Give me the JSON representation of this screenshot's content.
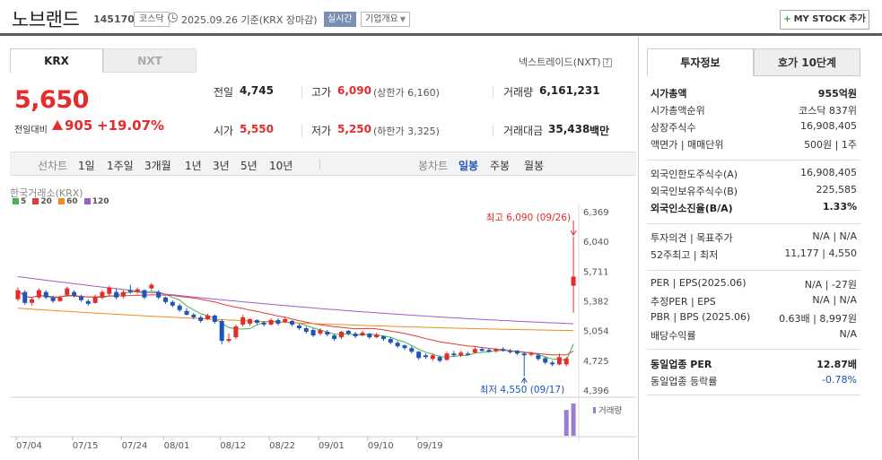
{
  "header": {
    "stock_name": "노브랜드",
    "stock_code": "145170",
    "market": "코스닥",
    "date_text": "2025.09.26 기준(KRX 장마감)",
    "realtime_label": "실시간",
    "company_overview_label": "기업개요",
    "mystock_label": "MY STOCK 추가"
  },
  "market_tabs": [
    "KRX",
    "NXT"
  ],
  "nxt_link": "넥스트레이드(NXT)",
  "quote": {
    "price": "5,650",
    "prev_label": "전일대비",
    "change": "905",
    "change_rate": "+19.07%",
    "prev_close_label": "전일",
    "prev_close": "4,745",
    "high_label": "고가",
    "high": "6,090",
    "upper_limit": "(상한가 6,160)",
    "volume_label": "거래량",
    "volume": "6,161,231",
    "open_label": "시가",
    "open": "5,550",
    "low_label": "저가",
    "low": "5,250",
    "lower_limit": "(하한가 3,325)",
    "amount_label": "거래대금",
    "amount": "35,438",
    "amount_unit": "백만"
  },
  "period_bar": {
    "line_chart": "선차트",
    "periods": [
      "1일",
      "1주일",
      "3개월",
      "1년",
      "3년",
      "5년",
      "10년"
    ],
    "candle_chart": "봉차트",
    "candle_periods": [
      "일봉",
      "주봉",
      "월봉"
    ],
    "active_candle": "일봉"
  },
  "chart_source": "한국거래소(KRX)",
  "legend": [
    "5",
    "20",
    "60",
    "120"
  ],
  "colors": {
    "up": "#e52b2b",
    "down": "#1d56b8",
    "ma5": "#4caf50",
    "ma20": "#e53935",
    "ma60": "#f08c1e",
    "ma120": "#9c5fc9",
    "accent_blue": "#1d56b8"
  },
  "chart_data": {
    "type": "candlestick",
    "y_axis_ticks": [
      "6,369",
      "6,040",
      "5,711",
      "5,382",
      "5,054",
      "4,725",
      "4,396"
    ],
    "ylim": [
      4396,
      6369
    ],
    "x_axis_ticks": [
      "07/04",
      "07/15",
      "07/24",
      "08/01",
      "08/12",
      "08/22",
      "09/01",
      "09/10",
      "09/19"
    ],
    "annotation_high": "최고 6,090 (09/26)",
    "annotation_low": "최저 4,550 (09/17)",
    "volume_label": "거래량",
    "candles": [
      {
        "o": 5400,
        "c": 5500,
        "h": 5530,
        "l": 5380
      },
      {
        "o": 5480,
        "c": 5360,
        "h": 5500,
        "l": 5340
      },
      {
        "o": 5360,
        "c": 5400,
        "h": 5420,
        "l": 5330
      },
      {
        "o": 5420,
        "c": 5500,
        "h": 5520,
        "l": 5400
      },
      {
        "o": 5480,
        "c": 5420,
        "h": 5500,
        "l": 5400
      },
      {
        "o": 5420,
        "c": 5380,
        "h": 5440,
        "l": 5360
      },
      {
        "o": 5380,
        "c": 5420,
        "h": 5440,
        "l": 5370
      },
      {
        "o": 5450,
        "c": 5520,
        "h": 5540,
        "l": 5430
      },
      {
        "o": 5480,
        "c": 5440,
        "h": 5500,
        "l": 5420
      },
      {
        "o": 5430,
        "c": 5390,
        "h": 5450,
        "l": 5370
      },
      {
        "o": 5380,
        "c": 5350,
        "h": 5400,
        "l": 5330
      },
      {
        "o": 5360,
        "c": 5430,
        "h": 5450,
        "l": 5350
      },
      {
        "o": 5420,
        "c": 5480,
        "h": 5500,
        "l": 5400
      },
      {
        "o": 5460,
        "c": 5530,
        "h": 5550,
        "l": 5440
      },
      {
        "o": 5480,
        "c": 5420,
        "h": 5520,
        "l": 5400
      },
      {
        "o": 5430,
        "c": 5480,
        "h": 5500,
        "l": 5410
      },
      {
        "o": 5500,
        "c": 5480,
        "h": 5560,
        "l": 5460
      },
      {
        "o": 5480,
        "c": 5510,
        "h": 5530,
        "l": 5460
      },
      {
        "o": 5500,
        "c": 5420,
        "h": 5510,
        "l": 5400
      },
      {
        "o": 5520,
        "c": 5560,
        "h": 5580,
        "l": 5500
      },
      {
        "o": 5480,
        "c": 5420,
        "h": 5500,
        "l": 5400
      },
      {
        "o": 5420,
        "c": 5370,
        "h": 5430,
        "l": 5350
      },
      {
        "o": 5370,
        "c": 5330,
        "h": 5390,
        "l": 5310
      },
      {
        "o": 5330,
        "c": 5280,
        "h": 5350,
        "l": 5260
      },
      {
        "o": 5270,
        "c": 5230,
        "h": 5300,
        "l": 5220
      },
      {
        "o": 5230,
        "c": 5200,
        "h": 5250,
        "l": 5180
      },
      {
        "o": 5200,
        "c": 5160,
        "h": 5220,
        "l": 5140
      },
      {
        "o": 5180,
        "c": 5220,
        "h": 5240,
        "l": 5170
      },
      {
        "o": 5220,
        "c": 5150,
        "h": 5230,
        "l": 5130
      },
      {
        "o": 5160,
        "c": 4940,
        "h": 5180,
        "l": 4900
      },
      {
        "o": 4940,
        "c": 4960,
        "h": 5020,
        "l": 4920
      },
      {
        "o": 4980,
        "c": 5100,
        "h": 5120,
        "l": 4960
      },
      {
        "o": 5120,
        "c": 5200,
        "h": 5230,
        "l": 5100
      },
      {
        "o": 5130,
        "c": 5180,
        "h": 5190,
        "l": 5110
      },
      {
        "o": 5170,
        "c": 5140,
        "h": 5180,
        "l": 5120
      },
      {
        "o": 5140,
        "c": 5120,
        "h": 5160,
        "l": 5100
      },
      {
        "o": 5120,
        "c": 5170,
        "h": 5190,
        "l": 5110
      },
      {
        "o": 5170,
        "c": 5130,
        "h": 5190,
        "l": 5110
      },
      {
        "o": 5150,
        "c": 5180,
        "h": 5200,
        "l": 5140
      },
      {
        "o": 5160,
        "c": 5120,
        "h": 5170,
        "l": 5100
      },
      {
        "o": 5110,
        "c": 5080,
        "h": 5130,
        "l": 5060
      },
      {
        "o": 5080,
        "c": 5040,
        "h": 5100,
        "l": 5020
      },
      {
        "o": 5060,
        "c": 5000,
        "h": 5080,
        "l": 4980
      },
      {
        "o": 5020,
        "c": 5060,
        "h": 5080,
        "l": 5000
      },
      {
        "o": 5040,
        "c": 5010,
        "h": 5060,
        "l": 4990
      },
      {
        "o": 5000,
        "c": 4960,
        "h": 5020,
        "l": 4940
      },
      {
        "o": 4980,
        "c": 5040,
        "h": 5050,
        "l": 4960
      },
      {
        "o": 5050,
        "c": 5020,
        "h": 5060,
        "l": 5000
      },
      {
        "o": 5020,
        "c": 4990,
        "h": 5040,
        "l": 4970
      },
      {
        "o": 5000,
        "c": 5030,
        "h": 5050,
        "l": 4990
      },
      {
        "o": 5020,
        "c": 4980,
        "h": 5030,
        "l": 4960
      },
      {
        "o": 4980,
        "c": 5010,
        "h": 5030,
        "l": 4970
      },
      {
        "o": 4990,
        "c": 4960,
        "h": 5000,
        "l": 4940
      },
      {
        "o": 4960,
        "c": 4920,
        "h": 4980,
        "l": 4900
      },
      {
        "o": 4920,
        "c": 4880,
        "h": 4940,
        "l": 4860
      },
      {
        "o": 4890,
        "c": 4860,
        "h": 4900,
        "l": 4840
      },
      {
        "o": 4860,
        "c": 4820,
        "h": 4880,
        "l": 4800
      },
      {
        "o": 4820,
        "c": 4750,
        "h": 4830,
        "l": 4730
      },
      {
        "o": 4780,
        "c": 4760,
        "h": 4800,
        "l": 4740
      },
      {
        "o": 4740,
        "c": 4780,
        "h": 4800,
        "l": 4720
      },
      {
        "o": 4760,
        "c": 4720,
        "h": 4780,
        "l": 4700
      },
      {
        "o": 4730,
        "c": 4800,
        "h": 4820,
        "l": 4720
      },
      {
        "o": 4800,
        "c": 4780,
        "h": 4830,
        "l": 4770
      },
      {
        "o": 4780,
        "c": 4810,
        "h": 4830,
        "l": 4760
      },
      {
        "o": 4800,
        "c": 4790,
        "h": 4820,
        "l": 4780
      },
      {
        "o": 4810,
        "c": 4850,
        "h": 4870,
        "l": 4800
      },
      {
        "o": 4850,
        "c": 4830,
        "h": 4870,
        "l": 4820
      },
      {
        "o": 4840,
        "c": 4820,
        "h": 4860,
        "l": 4810
      },
      {
        "o": 4830,
        "c": 4850,
        "h": 4860,
        "l": 4810
      },
      {
        "o": 4850,
        "c": 4830,
        "h": 4870,
        "l": 4820
      },
      {
        "o": 4830,
        "c": 4820,
        "h": 4850,
        "l": 4800
      },
      {
        "o": 4830,
        "c": 4800,
        "h": 4840,
        "l": 4780
      },
      {
        "o": 4800,
        "c": 4780,
        "h": 4820,
        "l": 4550
      },
      {
        "o": 4790,
        "c": 4800,
        "h": 4820,
        "l": 4770
      },
      {
        "o": 4780,
        "c": 4740,
        "h": 4800,
        "l": 4720
      },
      {
        "o": 4750,
        "c": 4700,
        "h": 4760,
        "l": 4680
      },
      {
        "o": 4700,
        "c": 4680,
        "h": 4720,
        "l": 4660
      },
      {
        "o": 4680,
        "c": 4760,
        "h": 4800,
        "l": 4670
      },
      {
        "o": 4680,
        "c": 4745,
        "h": 4760,
        "l": 4660
      },
      {
        "o": 5550,
        "c": 5650,
        "h": 6090,
        "l": 5250
      }
    ],
    "volume": [
      {
        "index": 78,
        "value": 0.8
      },
      {
        "index": 79,
        "value": 1.0
      }
    ]
  },
  "invest_panel": {
    "tabs": [
      "투자정보",
      "호가 10단계"
    ],
    "rows1": [
      {
        "label": "시가총액",
        "value": "955억원",
        "bold": true
      },
      {
        "label": "시가총액순위",
        "value": "코스닥 837위"
      },
      {
        "label": "상장주식수",
        "value": "16,908,405"
      },
      {
        "label": "액면가 | 매매단위",
        "value": "500원 | 1주"
      }
    ],
    "rows2": [
      {
        "label": "외국인한도주식수(A)",
        "value": "16,908,405"
      },
      {
        "label": "외국인보유주식수(B)",
        "value": "225,585"
      },
      {
        "label": "외국인소진율(B/A)",
        "value": "1.33%",
        "bold": true
      }
    ],
    "rows3": [
      {
        "label": "투자의견 | 목표주가",
        "value": "N/A | N/A"
      },
      {
        "label": "52주최고 | 최저",
        "value": "11,177 | 4,550"
      }
    ],
    "rows4": [
      {
        "label": "PER | EPS(2025.06)",
        "value": "N/A | -27원"
      },
      {
        "label": "추정PER | EPS",
        "value": "N/A | N/A"
      },
      {
        "label": "PBR | BPS (2025.06)",
        "value": "0.63배 | 8,997원"
      },
      {
        "label": "배당수익률",
        "value": "N/A"
      }
    ],
    "rows5": [
      {
        "label": "동일업종 PER",
        "value": "12.87배",
        "bold": true
      },
      {
        "label": "동일업종 등락률",
        "value": "-0.78%",
        "blue": true
      }
    ]
  }
}
